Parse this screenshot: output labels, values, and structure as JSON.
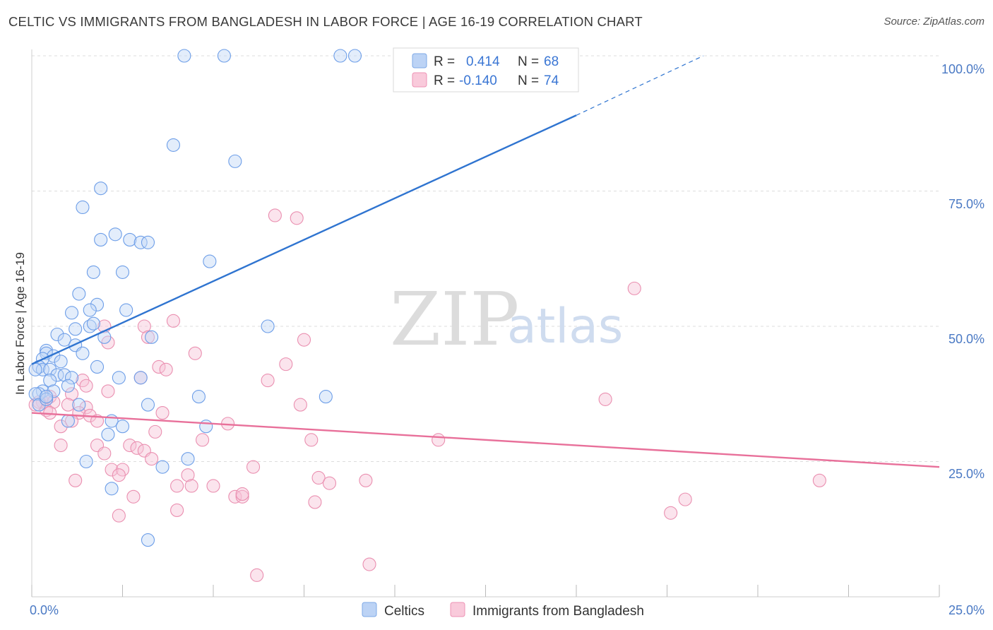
{
  "header": {
    "title": "CELTIC VS IMMIGRANTS FROM BANGLADESH IN LABOR FORCE | AGE 16-19 CORRELATION CHART",
    "source": "Source: ZipAtlas.com"
  },
  "watermark": {
    "zip": "ZIP",
    "atlas": "atlas"
  },
  "legend_top": {
    "rows": [
      {
        "r_label": "R = ",
        "r_value": "0.414",
        "n_label": "N = ",
        "n_value": "68"
      },
      {
        "r_label": "R = ",
        "r_value": "-0.140",
        "n_label": "N = ",
        "n_value": "74"
      }
    ]
  },
  "legend_bottom": {
    "celtics": "Celtics",
    "bangladesh": "Immigrants from Bangladesh"
  },
  "chart_data": {
    "type": "scatter",
    "title": "CELTIC VS IMMIGRANTS FROM BANGLADESH IN LABOR FORCE | AGE 16-19 CORRELATION CHART",
    "xlabel": "",
    "ylabel": "In Labor Force | Age 16-19",
    "xlim": [
      0,
      25
    ],
    "ylim": [
      0,
      100
    ],
    "x_ticks": [
      "0.0%",
      "25.0%"
    ],
    "y_ticks": [
      "25.0%",
      "50.0%",
      "75.0%",
      "100.0%"
    ],
    "grid": true,
    "legend_position": "top-center",
    "colors": {
      "celtics": "#6d9ee8",
      "celtics_line": "#2f74d0",
      "bangladesh": "#ef8aac",
      "bangladesh_line": "#e8709a"
    },
    "series": [
      {
        "name": "Celtics",
        "r": 0.414,
        "n": 68,
        "trend": {
          "x": [
            0,
            15,
            18.5
          ],
          "y": [
            43,
            89,
            100
          ],
          "solid_to_x": 15
        },
        "points": [
          [
            4.2,
            100
          ],
          [
            5.3,
            100
          ],
          [
            8.5,
            100
          ],
          [
            8.9,
            100
          ],
          [
            10.2,
            100
          ],
          [
            3.9,
            83.5
          ],
          [
            5.6,
            80.5
          ],
          [
            1.9,
            75.5
          ],
          [
            1.4,
            72
          ],
          [
            2.3,
            67
          ],
          [
            1.9,
            66
          ],
          [
            2.7,
            66
          ],
          [
            3.0,
            65.5
          ],
          [
            3.2,
            65.5
          ],
          [
            4.9,
            62
          ],
          [
            1.7,
            60
          ],
          [
            2.5,
            60
          ],
          [
            1.3,
            56
          ],
          [
            1.8,
            54
          ],
          [
            1.6,
            53
          ],
          [
            1.1,
            52.5
          ],
          [
            2.6,
            53
          ],
          [
            6.5,
            50
          ],
          [
            1.6,
            50
          ],
          [
            1.2,
            49.5
          ],
          [
            1.7,
            50.5
          ],
          [
            0.7,
            48.5
          ],
          [
            2.0,
            48
          ],
          [
            3.3,
            48
          ],
          [
            0.9,
            47.5
          ],
          [
            1.2,
            46.5
          ],
          [
            0.4,
            45.5
          ],
          [
            0.4,
            45
          ],
          [
            1.4,
            45
          ],
          [
            0.6,
            44.5
          ],
          [
            0.3,
            44
          ],
          [
            0.8,
            43.5
          ],
          [
            0.2,
            42.5
          ],
          [
            0.3,
            42
          ],
          [
            0.1,
            42
          ],
          [
            0.5,
            42
          ],
          [
            1.8,
            42.5
          ],
          [
            0.7,
            41
          ],
          [
            0.9,
            41
          ],
          [
            1.1,
            40.5
          ],
          [
            2.4,
            40.5
          ],
          [
            3.0,
            40.5
          ],
          [
            0.5,
            40
          ],
          [
            1.0,
            39
          ],
          [
            0.3,
            38
          ],
          [
            0.2,
            37.5
          ],
          [
            0.1,
            37.5
          ],
          [
            0.6,
            38
          ],
          [
            4.6,
            37
          ],
          [
            8.1,
            37
          ],
          [
            3.2,
            35.5
          ],
          [
            1.3,
            35.5
          ],
          [
            0.2,
            35.5
          ],
          [
            0.4,
            36.5
          ],
          [
            0.4,
            37
          ],
          [
            1.0,
            32.5
          ],
          [
            2.2,
            32.5
          ],
          [
            2.5,
            31.5
          ],
          [
            4.8,
            31.5
          ],
          [
            2.1,
            30
          ],
          [
            1.5,
            25
          ],
          [
            3.6,
            24
          ],
          [
            4.3,
            25.5
          ],
          [
            2.2,
            20
          ],
          [
            3.2,
            10.5
          ]
        ]
      },
      {
        "name": "Immigrants from Bangladesh",
        "r": -0.14,
        "n": 74,
        "trend": {
          "x": [
            0,
            25
          ],
          "y": [
            34,
            24
          ]
        },
        "points": [
          [
            6.7,
            70.5
          ],
          [
            7.3,
            70
          ],
          [
            16.6,
            57
          ],
          [
            3.9,
            51
          ],
          [
            3.1,
            50
          ],
          [
            2.0,
            50
          ],
          [
            3.2,
            48
          ],
          [
            7.5,
            47.5
          ],
          [
            2.1,
            47
          ],
          [
            4.5,
            45
          ],
          [
            7.0,
            43
          ],
          [
            3.5,
            42.5
          ],
          [
            3.7,
            42
          ],
          [
            6.5,
            40
          ],
          [
            3.0,
            40.5
          ],
          [
            1.4,
            40
          ],
          [
            1.5,
            39
          ],
          [
            2.1,
            38
          ],
          [
            1.1,
            37.5
          ],
          [
            0.5,
            37
          ],
          [
            0.3,
            36
          ],
          [
            0.4,
            36.5
          ],
          [
            0.2,
            36
          ],
          [
            0.1,
            35.5
          ],
          [
            0.6,
            36
          ],
          [
            1.0,
            35.5
          ],
          [
            1.5,
            35
          ],
          [
            7.4,
            35.5
          ],
          [
            15.8,
            36.5
          ],
          [
            0.4,
            34.5
          ],
          [
            0.5,
            34
          ],
          [
            1.3,
            34
          ],
          [
            1.6,
            33.5
          ],
          [
            3.6,
            34
          ],
          [
            1.8,
            32.5
          ],
          [
            5.4,
            32
          ],
          [
            0.8,
            31.5
          ],
          [
            1.1,
            32.5
          ],
          [
            3.4,
            30.5
          ],
          [
            4.7,
            29
          ],
          [
            7.7,
            29
          ],
          [
            11.2,
            29
          ],
          [
            0.8,
            28
          ],
          [
            1.8,
            28
          ],
          [
            2.7,
            28
          ],
          [
            2.9,
            27.5
          ],
          [
            3.1,
            27
          ],
          [
            2.0,
            26.5
          ],
          [
            3.3,
            25.5
          ],
          [
            6.1,
            24
          ],
          [
            2.2,
            23.5
          ],
          [
            2.5,
            23.5
          ],
          [
            2.4,
            22.5
          ],
          [
            4.3,
            22.5
          ],
          [
            7.9,
            22
          ],
          [
            9.2,
            21.5
          ],
          [
            21.7,
            21.5
          ],
          [
            1.2,
            21.5
          ],
          [
            8.2,
            21
          ],
          [
            4.4,
            20.5
          ],
          [
            4.0,
            20.5
          ],
          [
            5.0,
            20.5
          ],
          [
            5.6,
            18.5
          ],
          [
            5.8,
            18.5
          ],
          [
            5.8,
            19
          ],
          [
            2.8,
            18.5
          ],
          [
            7.8,
            17.5
          ],
          [
            18.0,
            18
          ],
          [
            4.0,
            16
          ],
          [
            17.6,
            15.5
          ],
          [
            2.4,
            15
          ],
          [
            9.3,
            6
          ],
          [
            6.2,
            4
          ]
        ]
      }
    ]
  }
}
